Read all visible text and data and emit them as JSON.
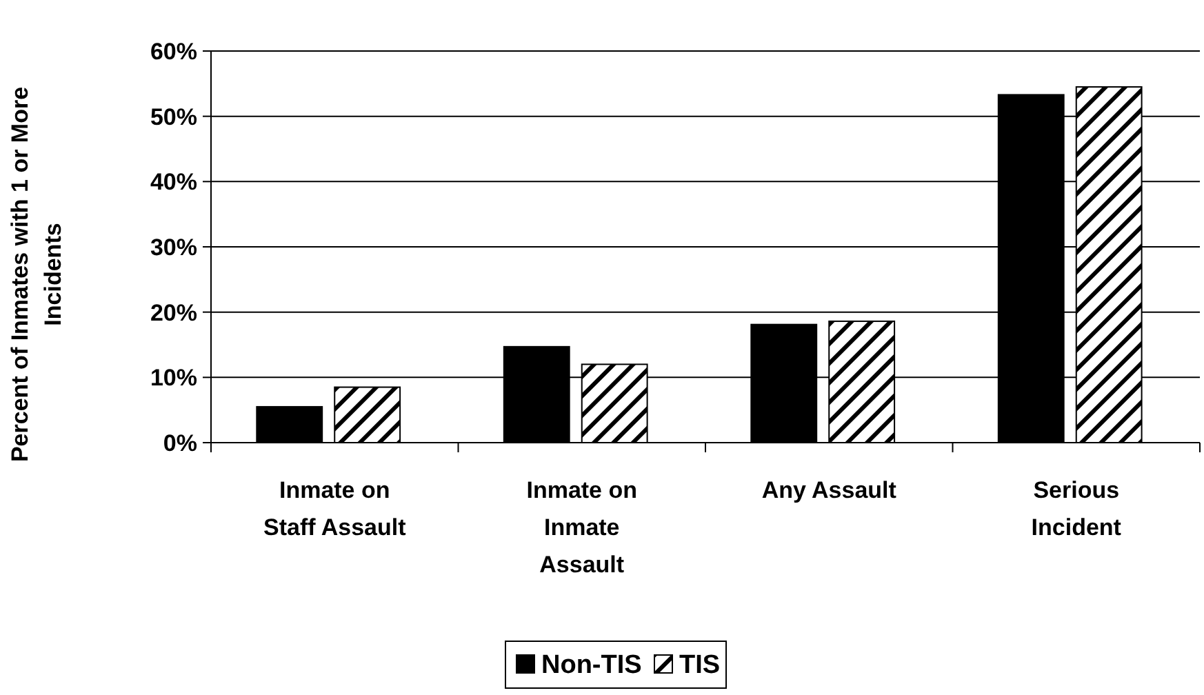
{
  "chart_data": {
    "type": "bar",
    "ylabel": "Percent of Inmates with 1 or More Incidents",
    "categories": [
      "Inmate on Staff Assault",
      "Inmate on Inmate Assault",
      "Any Assault",
      "Serious Incident"
    ],
    "series": [
      {
        "name": "Non-TIS",
        "color": "#000000",
        "values": [
          5.5,
          14.7,
          18.1,
          53.3
        ]
      },
      {
        "name": "TIS",
        "color": "#000000",
        "values": [
          8.5,
          12.0,
          18.6,
          54.5
        ]
      }
    ],
    "ylim": [
      0,
      60
    ],
    "yticks": [
      {
        "value": 0,
        "label": "0%"
      },
      {
        "value": 10,
        "label": "10%"
      },
      {
        "value": 20,
        "label": "20%"
      },
      {
        "value": 30,
        "label": "30%"
      },
      {
        "value": 40,
        "label": "40%"
      },
      {
        "value": 50,
        "label": "50%"
      },
      {
        "value": 60,
        "label": "60%"
      }
    ],
    "grid": "y",
    "legend": "bottom"
  }
}
